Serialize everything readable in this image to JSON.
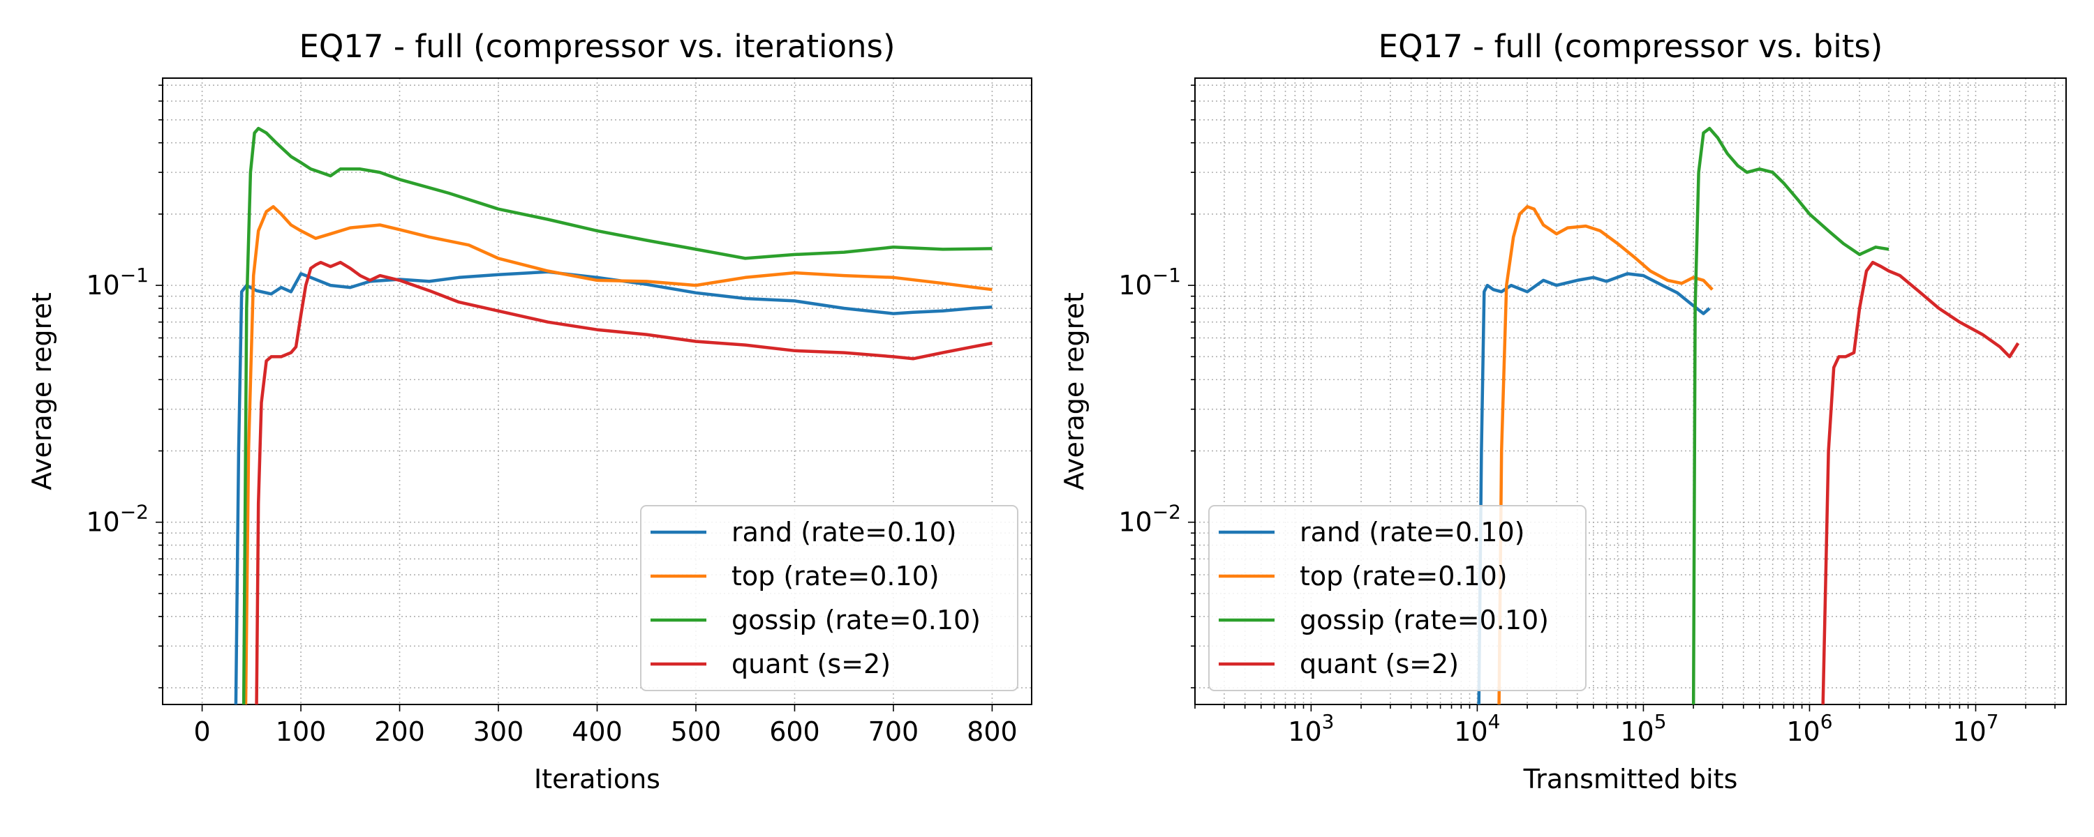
{
  "chart_data": [
    {
      "type": "line",
      "title": "EQ17 - full (compressor vs. iterations)",
      "xlabel": "Iterations",
      "ylabel": "Average regret",
      "xscale": "linear",
      "yscale": "log",
      "xlim": [
        -40,
        840
      ],
      "ylim": [
        0.0017,
        0.75
      ],
      "xticks": [
        {
          "value": 0,
          "label": "0"
        },
        {
          "value": 100,
          "label": "100"
        },
        {
          "value": 200,
          "label": "200"
        },
        {
          "value": 300,
          "label": "300"
        },
        {
          "value": 400,
          "label": "400"
        },
        {
          "value": 500,
          "label": "500"
        },
        {
          "value": 600,
          "label": "600"
        },
        {
          "value": 700,
          "label": "700"
        },
        {
          "value": 800,
          "label": "800"
        }
      ],
      "yticks": [
        {
          "value": 0.1,
          "label": "10",
          "exp": "−1"
        },
        {
          "value": 0.01,
          "label": "10",
          "exp": "−2"
        }
      ],
      "grid": true,
      "legend_position": "lower-right",
      "series": [
        {
          "name": "rand (rate=0.10)",
          "color": "#1f77b4",
          "x": [
            34,
            37,
            40,
            45,
            55,
            70,
            80,
            90,
            100,
            110,
            130,
            150,
            170,
            200,
            230,
            260,
            300,
            350,
            400,
            450,
            500,
            550,
            600,
            650,
            700,
            720,
            750,
            780,
            800
          ],
          "y": [
            0.0015,
            0.02,
            0.094,
            0.1,
            0.095,
            0.092,
            0.098,
            0.094,
            0.112,
            0.108,
            0.1,
            0.098,
            0.104,
            0.106,
            0.104,
            0.108,
            0.111,
            0.114,
            0.108,
            0.101,
            0.093,
            0.088,
            0.086,
            0.08,
            0.076,
            0.077,
            0.078,
            0.08,
            0.081
          ]
        },
        {
          "name": "top (rate=0.10)",
          "color": "#ff7f0e",
          "x": [
            44,
            47,
            52,
            57,
            65,
            72,
            80,
            90,
            100,
            115,
            130,
            150,
            180,
            200,
            230,
            270,
            300,
            350,
            400,
            450,
            500,
            550,
            600,
            650,
            700,
            750,
            800
          ],
          "y": [
            0.0015,
            0.02,
            0.11,
            0.17,
            0.205,
            0.215,
            0.2,
            0.18,
            0.17,
            0.158,
            0.165,
            0.175,
            0.18,
            0.172,
            0.16,
            0.148,
            0.13,
            0.115,
            0.105,
            0.104,
            0.1,
            0.108,
            0.113,
            0.11,
            0.108,
            0.102,
            0.096
          ]
        },
        {
          "name": "gossip (rate=0.10)",
          "color": "#2ca02c",
          "x": [
            42,
            45,
            49,
            53,
            57,
            65,
            75,
            90,
            100,
            110,
            120,
            130,
            140,
            160,
            180,
            200,
            250,
            300,
            350,
            400,
            450,
            500,
            550,
            600,
            650,
            700,
            750,
            800
          ],
          "y": [
            0.0015,
            0.08,
            0.3,
            0.44,
            0.46,
            0.44,
            0.4,
            0.35,
            0.33,
            0.31,
            0.3,
            0.29,
            0.31,
            0.31,
            0.3,
            0.28,
            0.245,
            0.21,
            0.19,
            0.17,
            0.155,
            0.142,
            0.13,
            0.135,
            0.138,
            0.145,
            0.142,
            0.143
          ]
        },
        {
          "name": "quant (s=2)",
          "color": "#d62728",
          "x": [
            55,
            57,
            60,
            65,
            70,
            80,
            90,
            95,
            100,
            105,
            110,
            115,
            120,
            130,
            140,
            150,
            160,
            170,
            180,
            200,
            230,
            260,
            300,
            350,
            400,
            450,
            500,
            550,
            600,
            650,
            700,
            720,
            750,
            780,
            800
          ],
          "y": [
            0.0015,
            0.012,
            0.032,
            0.048,
            0.05,
            0.05,
            0.052,
            0.055,
            0.075,
            0.1,
            0.118,
            0.122,
            0.125,
            0.12,
            0.125,
            0.118,
            0.11,
            0.105,
            0.11,
            0.105,
            0.095,
            0.085,
            0.078,
            0.07,
            0.065,
            0.062,
            0.058,
            0.056,
            0.053,
            0.052,
            0.05,
            0.049,
            0.052,
            0.055,
            0.057
          ]
        }
      ]
    },
    {
      "type": "line",
      "title": "EQ17 - full (compressor vs. bits)",
      "xlabel": "Transmitted bits",
      "ylabel": "Average regret",
      "xscale": "log",
      "yscale": "log",
      "xlim": [
        200,
        35000000
      ],
      "ylim": [
        0.0017,
        0.75
      ],
      "xticks": [
        {
          "value": 1000,
          "label": "10",
          "exp": "3"
        },
        {
          "value": 10000,
          "label": "10",
          "exp": "4"
        },
        {
          "value": 100000,
          "label": "10",
          "exp": "5"
        },
        {
          "value": 1000000,
          "label": "10",
          "exp": "6"
        },
        {
          "value": 10000000,
          "label": "10",
          "exp": "7"
        }
      ],
      "yticks": [
        {
          "value": 0.1,
          "label": "10",
          "exp": "−1"
        },
        {
          "value": 0.01,
          "label": "10",
          "exp": "−2"
        }
      ],
      "grid": true,
      "legend_position": "lower-left",
      "series": [
        {
          "name": "rand (rate=0.10)",
          "color": "#1f77b4",
          "x": [
            10200,
            10600,
            11000,
            11500,
            12500,
            14000,
            16000,
            20000,
            25000,
            30000,
            40000,
            50000,
            60000,
            80000,
            100000,
            130000,
            160000,
            200000,
            230000,
            250000
          ],
          "y": [
            0.0015,
            0.02,
            0.094,
            0.1,
            0.096,
            0.094,
            0.1,
            0.094,
            0.105,
            0.1,
            0.105,
            0.108,
            0.104,
            0.112,
            0.11,
            0.1,
            0.093,
            0.082,
            0.076,
            0.08
          ]
        },
        {
          "name": "top (rate=0.10)",
          "color": "#ff7f0e",
          "x": [
            13500,
            14000,
            15000,
            16500,
            18000,
            20000,
            22000,
            25000,
            30000,
            35000,
            45000,
            55000,
            70000,
            90000,
            110000,
            140000,
            170000,
            200000,
            230000,
            260000
          ],
          "y": [
            0.0015,
            0.02,
            0.1,
            0.16,
            0.2,
            0.215,
            0.21,
            0.18,
            0.165,
            0.175,
            0.178,
            0.17,
            0.15,
            0.13,
            0.115,
            0.105,
            0.102,
            0.108,
            0.105,
            0.096
          ]
        },
        {
          "name": "gossip (rate=0.10)",
          "color": "#2ca02c",
          "x": [
            200000,
            205000,
            215000,
            230000,
            250000,
            280000,
            320000,
            370000,
            420000,
            500000,
            600000,
            700000,
            850000,
            1000000,
            1300000,
            1600000,
            2000000,
            2500000,
            3000000
          ],
          "y": [
            0.0015,
            0.08,
            0.3,
            0.44,
            0.46,
            0.42,
            0.36,
            0.32,
            0.3,
            0.31,
            0.3,
            0.27,
            0.23,
            0.2,
            0.17,
            0.15,
            0.135,
            0.145,
            0.142
          ]
        },
        {
          "name": "quant (s=2)",
          "color": "#d62728",
          "x": [
            1200000,
            1300000,
            1400000,
            1500000,
            1650000,
            1850000,
            2000000,
            2200000,
            2400000,
            2700000,
            3000000,
            3500000,
            4500000,
            6000000,
            8000000,
            11000000,
            14000000,
            16000000,
            18000000
          ],
          "y": [
            0.0015,
            0.02,
            0.045,
            0.05,
            0.05,
            0.052,
            0.08,
            0.115,
            0.125,
            0.12,
            0.115,
            0.11,
            0.095,
            0.08,
            0.07,
            0.062,
            0.055,
            0.05,
            0.057
          ]
        }
      ]
    }
  ]
}
